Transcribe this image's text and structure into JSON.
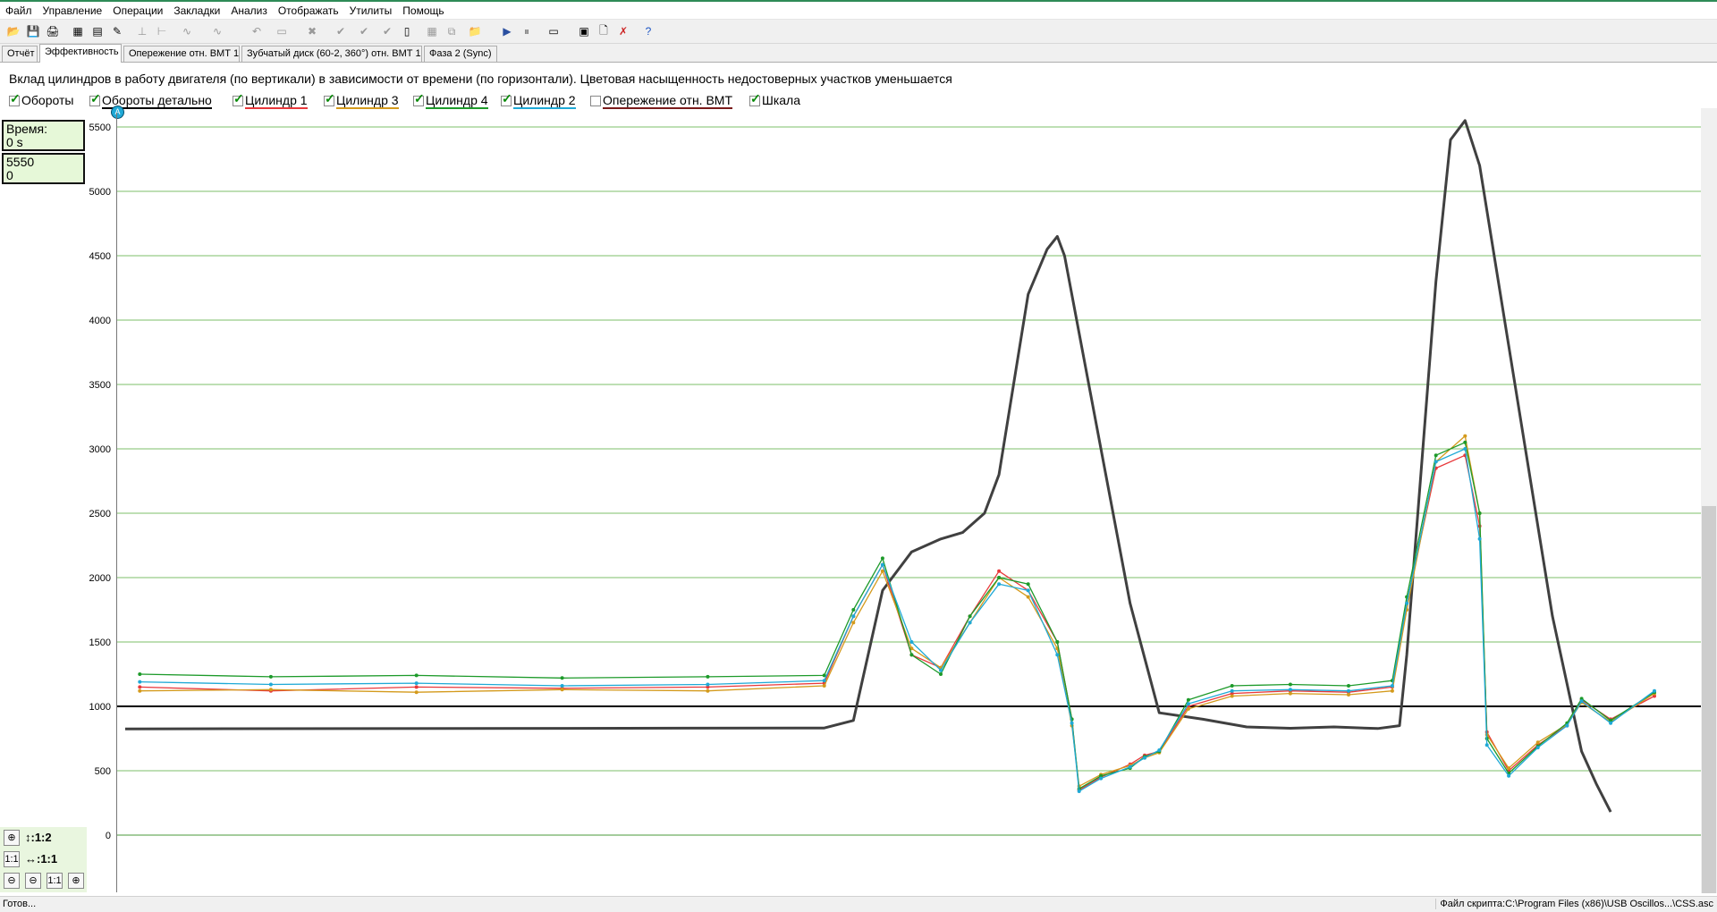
{
  "menu": [
    "Файл",
    "Управление",
    "Операции",
    "Закладки",
    "Анализ",
    "Отображать",
    "Утилиты",
    "Помощь"
  ],
  "tabs": [
    "Отчёт",
    "Эффективность",
    "Опережение отн. ВМТ 1",
    "Зубчатый диск (60-2, 360°) отн. ВМТ 1",
    "Фаза 2 (Sync)"
  ],
  "active_tab": 1,
  "description": "Вклад цилиндров в работу двигателя (по вертикали) в зависимости от времени (по горизонтали). Цветовая насыщенность недостоверных участков уменьшается",
  "legend": [
    {
      "label": "Обороты",
      "checked": true,
      "color": "#ffffff"
    },
    {
      "label": "Обороты детально",
      "checked": true,
      "color": "#000000"
    },
    {
      "label": "Цилиндр 1",
      "checked": true,
      "color": "#e8383b"
    },
    {
      "label": "Цилиндр 3",
      "checked": true,
      "color": "#d49a1c"
    },
    {
      "label": "Цилиндр 4",
      "checked": true,
      "color": "#1d9a2a"
    },
    {
      "label": "Цилиндр 2",
      "checked": true,
      "color": "#1fa9d6"
    },
    {
      "label": "Опережение отн. ВМТ",
      "checked": false,
      "color": "#7a1a1a"
    },
    {
      "label": "Шкала",
      "checked": true,
      "color": "#ffffff"
    }
  ],
  "marker_label": "A",
  "info_time": {
    "label": "Время:",
    "value": "0 s"
  },
  "info_cursor": {
    "line1": "5550",
    "line2": "0"
  },
  "zoom": {
    "vertical": "↕:1:2",
    "horizontal": "↔:1:1",
    "reset_label": "1:1"
  },
  "status": {
    "left": "Готов...",
    "right": "Файл скрипта:C:\\Program Files (x86)\\USB Oscillos...\\CSS.asc"
  },
  "chart_data": {
    "type": "line",
    "title": "",
    "xlabel": "",
    "ylabel": "",
    "ylim": [
      0,
      5500
    ],
    "yticks": [
      0,
      500,
      1000,
      1500,
      2000,
      2500,
      3000,
      3500,
      4000,
      4500,
      5000,
      5500
    ],
    "grid": true,
    "reference_line": 1000,
    "x_unit": "relative time (no axis labels shown)",
    "series": [
      {
        "name": "Обороты детально",
        "color": "#404040",
        "points": [
          [
            0,
            825
          ],
          [
            0.48,
            832
          ],
          [
            0.5,
            890
          ],
          [
            0.52,
            1900
          ],
          [
            0.54,
            2200
          ],
          [
            0.56,
            2300
          ],
          [
            0.575,
            2350
          ],
          [
            0.59,
            2500
          ],
          [
            0.6,
            2800
          ],
          [
            0.61,
            3500
          ],
          [
            0.62,
            4200
          ],
          [
            0.633,
            4550
          ],
          [
            0.64,
            4650
          ],
          [
            0.645,
            4500
          ],
          [
            0.67,
            3000
          ],
          [
            0.69,
            1800
          ],
          [
            0.71,
            950
          ],
          [
            0.74,
            900
          ],
          [
            0.77,
            840
          ],
          [
            0.8,
            830
          ],
          [
            0.83,
            840
          ],
          [
            0.86,
            828
          ],
          [
            0.875,
            850
          ],
          [
            0.88,
            1400
          ],
          [
            0.9,
            4300
          ],
          [
            0.91,
            5400
          ],
          [
            0.92,
            5550
          ],
          [
            0.93,
            5200
          ],
          [
            0.95,
            3800
          ],
          [
            0.98,
            1700
          ],
          [
            1.0,
            650
          ],
          [
            1.01,
            400
          ],
          [
            1.02,
            180
          ]
        ]
      },
      {
        "name": "Цилиндр 1",
        "color": "#e8383b",
        "points": [
          [
            0.01,
            1150
          ],
          [
            0.1,
            1120
          ],
          [
            0.2,
            1150
          ],
          [
            0.3,
            1140
          ],
          [
            0.4,
            1150
          ],
          [
            0.48,
            1180
          ],
          [
            0.5,
            1700
          ],
          [
            0.52,
            2100
          ],
          [
            0.54,
            1400
          ],
          [
            0.56,
            1300
          ],
          [
            0.58,
            1700
          ],
          [
            0.6,
            2050
          ],
          [
            0.62,
            1900
          ],
          [
            0.64,
            1500
          ],
          [
            0.65,
            900
          ],
          [
            0.655,
            350
          ],
          [
            0.67,
            450
          ],
          [
            0.69,
            550
          ],
          [
            0.7,
            620
          ],
          [
            0.71,
            650
          ],
          [
            0.73,
            1000
          ],
          [
            0.76,
            1100
          ],
          [
            0.8,
            1120
          ],
          [
            0.84,
            1110
          ],
          [
            0.87,
            1150
          ],
          [
            0.88,
            1800
          ],
          [
            0.9,
            2850
          ],
          [
            0.92,
            2950
          ],
          [
            0.93,
            2400
          ],
          [
            0.935,
            800
          ],
          [
            0.95,
            500
          ],
          [
            0.97,
            700
          ],
          [
            0.99,
            850
          ],
          [
            1.0,
            1050
          ],
          [
            1.02,
            900
          ],
          [
            1.05,
            1080
          ]
        ]
      },
      {
        "name": "Цилиндр 3",
        "color": "#d49a1c",
        "points": [
          [
            0.01,
            1120
          ],
          [
            0.1,
            1130
          ],
          [
            0.2,
            1110
          ],
          [
            0.3,
            1130
          ],
          [
            0.4,
            1120
          ],
          [
            0.48,
            1160
          ],
          [
            0.5,
            1650
          ],
          [
            0.52,
            2050
          ],
          [
            0.54,
            1450
          ],
          [
            0.56,
            1300
          ],
          [
            0.58,
            1650
          ],
          [
            0.6,
            2000
          ],
          [
            0.62,
            1850
          ],
          [
            0.64,
            1450
          ],
          [
            0.65,
            850
          ],
          [
            0.655,
            380
          ],
          [
            0.67,
            470
          ],
          [
            0.69,
            540
          ],
          [
            0.7,
            600
          ],
          [
            0.71,
            640
          ],
          [
            0.73,
            980
          ],
          [
            0.76,
            1080
          ],
          [
            0.8,
            1100
          ],
          [
            0.84,
            1090
          ],
          [
            0.87,
            1120
          ],
          [
            0.88,
            1750
          ],
          [
            0.9,
            2900
          ],
          [
            0.92,
            3100
          ],
          [
            0.93,
            2500
          ],
          [
            0.935,
            780
          ],
          [
            0.95,
            520
          ],
          [
            0.97,
            720
          ],
          [
            0.99,
            860
          ],
          [
            1.0,
            1030
          ],
          [
            1.02,
            880
          ],
          [
            1.05,
            1100
          ]
        ]
      },
      {
        "name": "Цилиндр 4",
        "color": "#1d9a2a",
        "points": [
          [
            0.01,
            1250
          ],
          [
            0.1,
            1230
          ],
          [
            0.2,
            1240
          ],
          [
            0.3,
            1220
          ],
          [
            0.4,
            1230
          ],
          [
            0.48,
            1240
          ],
          [
            0.5,
            1750
          ],
          [
            0.52,
            2150
          ],
          [
            0.54,
            1400
          ],
          [
            0.56,
            1250
          ],
          [
            0.58,
            1700
          ],
          [
            0.6,
            2000
          ],
          [
            0.62,
            1950
          ],
          [
            0.64,
            1500
          ],
          [
            0.65,
            900
          ],
          [
            0.655,
            360
          ],
          [
            0.67,
            460
          ],
          [
            0.69,
            520
          ],
          [
            0.7,
            610
          ],
          [
            0.71,
            650
          ],
          [
            0.73,
            1050
          ],
          [
            0.76,
            1160
          ],
          [
            0.8,
            1170
          ],
          [
            0.84,
            1160
          ],
          [
            0.87,
            1200
          ],
          [
            0.88,
            1850
          ],
          [
            0.9,
            2950
          ],
          [
            0.92,
            3050
          ],
          [
            0.93,
            2500
          ],
          [
            0.935,
            750
          ],
          [
            0.95,
            480
          ],
          [
            0.97,
            690
          ],
          [
            0.99,
            870
          ],
          [
            1.0,
            1060
          ],
          [
            1.02,
            890
          ],
          [
            1.05,
            1110
          ]
        ]
      },
      {
        "name": "Цилиндр 2",
        "color": "#1fa9d6",
        "points": [
          [
            0.01,
            1190
          ],
          [
            0.1,
            1170
          ],
          [
            0.2,
            1180
          ],
          [
            0.3,
            1160
          ],
          [
            0.4,
            1170
          ],
          [
            0.48,
            1200
          ],
          [
            0.5,
            1700
          ],
          [
            0.52,
            2100
          ],
          [
            0.54,
            1500
          ],
          [
            0.56,
            1280
          ],
          [
            0.58,
            1650
          ],
          [
            0.6,
            1950
          ],
          [
            0.62,
            1900
          ],
          [
            0.64,
            1400
          ],
          [
            0.65,
            870
          ],
          [
            0.655,
            340
          ],
          [
            0.67,
            440
          ],
          [
            0.69,
            530
          ],
          [
            0.7,
            600
          ],
          [
            0.71,
            660
          ],
          [
            0.73,
            1020
          ],
          [
            0.76,
            1120
          ],
          [
            0.8,
            1130
          ],
          [
            0.84,
            1120
          ],
          [
            0.87,
            1160
          ],
          [
            0.88,
            1800
          ],
          [
            0.9,
            2900
          ],
          [
            0.92,
            3000
          ],
          [
            0.93,
            2300
          ],
          [
            0.935,
            700
          ],
          [
            0.95,
            460
          ],
          [
            0.97,
            680
          ],
          [
            0.99,
            850
          ],
          [
            1.0,
            1040
          ],
          [
            1.02,
            870
          ],
          [
            1.05,
            1120
          ]
        ]
      }
    ]
  }
}
